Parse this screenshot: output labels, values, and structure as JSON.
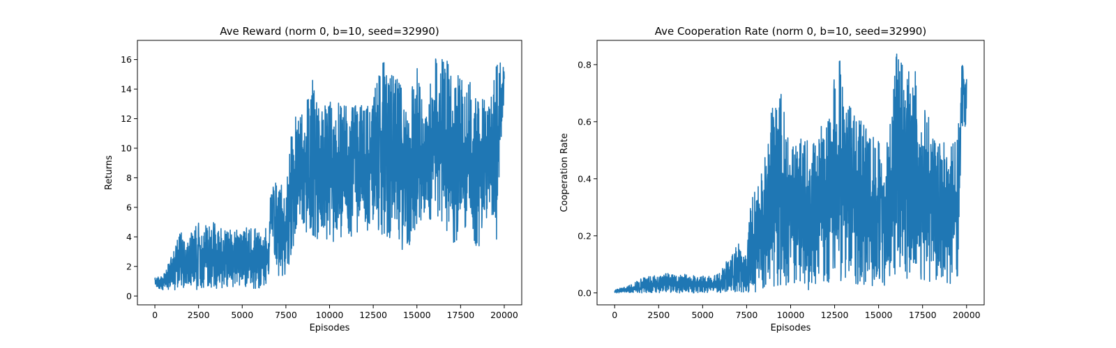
{
  "colors": {
    "series": "#1f77b4",
    "axes": "#000000",
    "background": "#ffffff"
  },
  "chart_data": [
    {
      "type": "line",
      "title": "Ave Reward (norm 0, b=10, seed=32990)",
      "xlabel": "Episodes",
      "ylabel": "Returns",
      "xlim": [
        -1000,
        21000
      ],
      "ylim": [
        -0.6,
        17.3
      ],
      "xticks": [
        0,
        2500,
        5000,
        7500,
        10000,
        12500,
        15000,
        17500,
        20000
      ],
      "xtick_labels": [
        "0",
        "2500",
        "5000",
        "7500",
        "10000",
        "12500",
        "15000",
        "17500",
        "20000"
      ],
      "yticks": [
        0,
        2,
        4,
        6,
        8,
        10,
        12,
        14,
        16
      ],
      "ytick_labels": [
        "0",
        "2",
        "4",
        "6",
        "8",
        "10",
        "12",
        "14",
        "16"
      ],
      "grid": false,
      "series": [
        {
          "x": [
            0,
            500,
            1000,
            1500,
            2000,
            2500,
            3000,
            3500,
            4000,
            4500,
            5000,
            5500,
            6000,
            6500,
            6600,
            7000,
            7500,
            7900,
            8200,
            8500,
            9000,
            9500,
            10000,
            10500,
            11000,
            11500,
            12000,
            12500,
            12900,
            13500,
            14000,
            14500,
            15000,
            15500,
            16000,
            16500,
            17000,
            17500,
            18000,
            18500,
            18800,
            19200,
            19600,
            20000
          ],
          "y_max": [
            1.3,
            1.5,
            2.8,
            4.5,
            4.3,
            5.0,
            4.8,
            5.1,
            4.6,
            4.5,
            4.7,
            4.8,
            4.5,
            4.7,
            7.0,
            8.3,
            7.5,
            12.7,
            11.8,
            12.8,
            15.0,
            12.5,
            13.8,
            13.3,
            13.4,
            13.5,
            12.6,
            13.4,
            16.3,
            15.2,
            14.5,
            13.7,
            15.6,
            12.2,
            16.5,
            16.0,
            16.1,
            14.6,
            14.7,
            13.4,
            13.3,
            13.2,
            16.3,
            16.2
          ],
          "y_min": [
            0.6,
            0.4,
            0.4,
            0.4,
            0.5,
            0.4,
            0.5,
            0.5,
            0.5,
            0.5,
            0.5,
            0.5,
            0.5,
            0.6,
            4.5,
            1.1,
            1.5,
            3.0,
            5.5,
            4.5,
            4.0,
            3.5,
            3.7,
            3.5,
            3.8,
            4.0,
            3.8,
            5.0,
            4.0,
            3.7,
            3.2,
            3.0,
            4.4,
            4.7,
            5.2,
            4.0,
            3.5,
            4.0,
            4.8,
            2.2,
            5.5,
            4.0,
            3.8,
            13.7
          ]
        }
      ]
    },
    {
      "type": "line",
      "title": "Ave Cooperation Rate (norm 0, b=10, seed=32990)",
      "xlabel": "Episodes",
      "ylabel": "Cooperation Rate",
      "xlim": [
        -1000,
        21000
      ],
      "ylim": [
        -0.042,
        0.885
      ],
      "xticks": [
        0,
        2500,
        5000,
        7500,
        10000,
        12500,
        15000,
        17500,
        20000
      ],
      "xtick_labels": [
        "0",
        "2500",
        "5000",
        "7500",
        "10000",
        "12500",
        "15000",
        "17500",
        "20000"
      ],
      "yticks": [
        0,
        0.2,
        0.4,
        0.6,
        0.8
      ],
      "ytick_labels": [
        "0.0",
        "0.2",
        "0.4",
        "0.6",
        "0.8"
      ],
      "grid": false,
      "series": [
        {
          "x": [
            0,
            500,
            1000,
            1500,
            2000,
            2500,
            3000,
            3500,
            4000,
            4500,
            5000,
            5500,
            6000,
            6500,
            7000,
            7500,
            7700,
            8000,
            8500,
            9000,
            9500,
            10000,
            10500,
            11000,
            11500,
            12000,
            12500,
            12900,
            13500,
            14000,
            14500,
            15000,
            15500,
            16000,
            16500,
            17000,
            17500,
            18000,
            18500,
            19000,
            19500,
            19700,
            20000
          ],
          "y_max": [
            0.01,
            0.02,
            0.03,
            0.05,
            0.06,
            0.06,
            0.07,
            0.06,
            0.07,
            0.06,
            0.06,
            0.06,
            0.07,
            0.13,
            0.2,
            0.14,
            0.32,
            0.38,
            0.46,
            0.69,
            0.7,
            0.52,
            0.54,
            0.54,
            0.53,
            0.64,
            0.81,
            0.82,
            0.63,
            0.63,
            0.56,
            0.53,
            0.55,
            0.84,
            0.8,
            0.8,
            0.67,
            0.62,
            0.52,
            0.54,
            0.55,
            0.8,
            0.8
          ],
          "y_min": [
            0.0,
            0.0,
            0.0,
            0.0,
            0.0,
            0.0,
            0.0,
            0.0,
            0.0,
            0.0,
            0.0,
            0.0,
            0.0,
            0.0,
            0.0,
            0.0,
            0.0,
            0.0,
            0.0,
            0.0,
            0.01,
            0.02,
            0.01,
            0.01,
            0.02,
            0.03,
            0.05,
            0.04,
            0.03,
            0.02,
            0.02,
            0.02,
            0.03,
            0.07,
            0.04,
            0.03,
            0.03,
            0.01,
            0.0,
            0.03,
            0.03,
            0.56,
            0.56
          ]
        }
      ]
    }
  ]
}
